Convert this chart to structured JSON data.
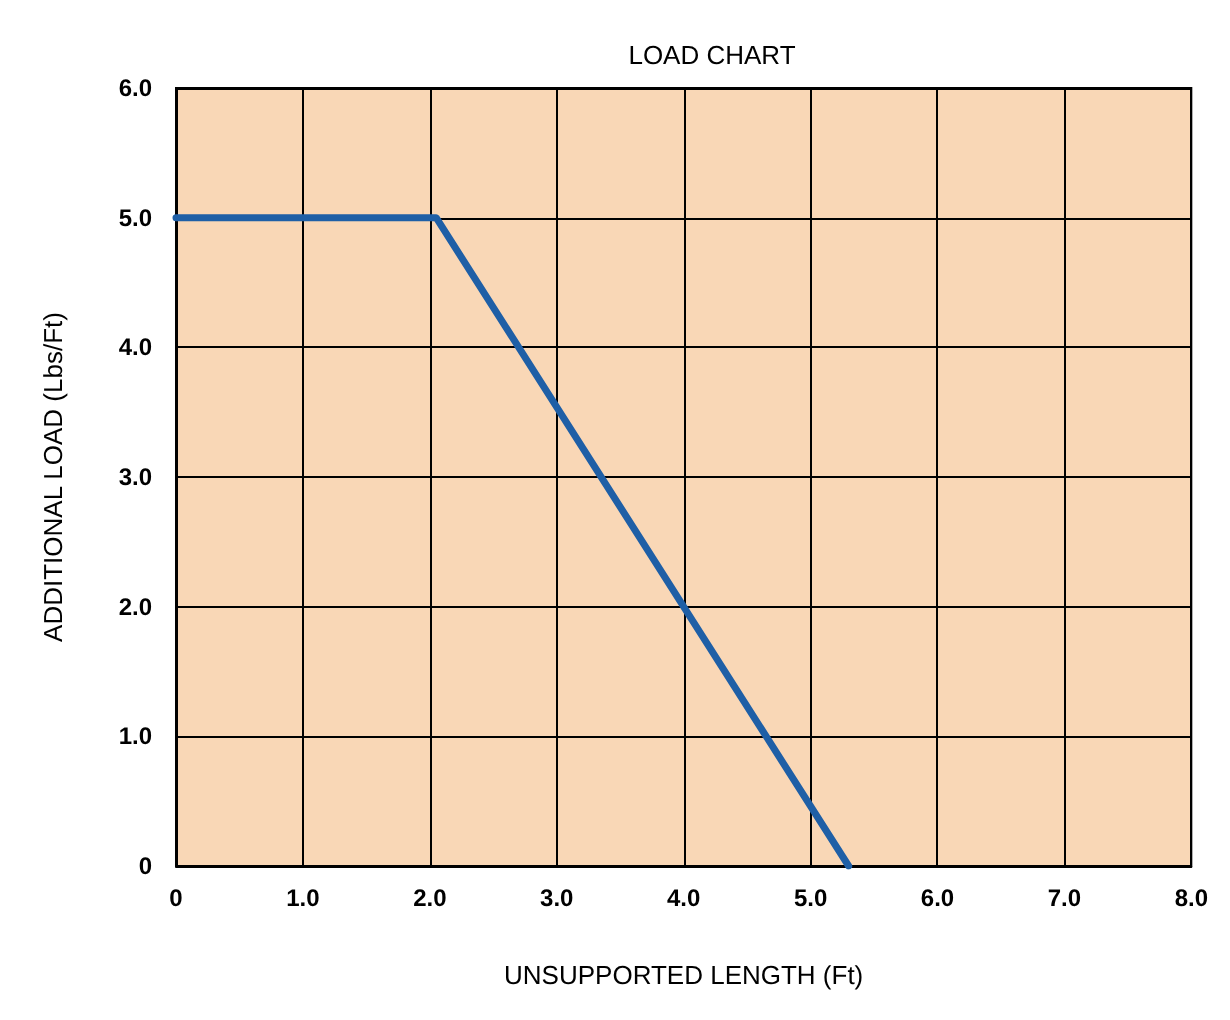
{
  "chart_data": {
    "type": "line",
    "title": "LOAD CHART",
    "xlabel": "UNSUPPORTED LENGTH (Ft)",
    "ylabel": "ADDITIONAL LOAD (Lbs/Ft)",
    "x": [
      0,
      2.05,
      5.3
    ],
    "series": [
      {
        "color": "#1f5fa6",
        "values": [
          5,
          5,
          0
        ]
      }
    ],
    "xlim": [
      0,
      8
    ],
    "xticks": [
      0,
      {
        "value": 1,
        "label": "1.0"
      },
      {
        "value": 2,
        "label": "2.0"
      },
      {
        "value": 3,
        "label": "3.0"
      },
      {
        "value": 4,
        "label": "4.0"
      },
      {
        "value": 5,
        "label": "5.0"
      },
      {
        "value": 6,
        "label": "6.0"
      },
      {
        "value": 7,
        "label": "7.0"
      },
      {
        "value": 8,
        "label": "8.0"
      }
    ],
    "ylim": [
      0,
      6
    ],
    "yticks": [
      0,
      {
        "value": 1,
        "label": "1.0"
      },
      {
        "value": 2,
        "label": "2.0"
      },
      {
        "value": 3,
        "label": "3.0"
      },
      {
        "value": 4,
        "label": "4.0"
      },
      {
        "value": 5,
        "label": "5.0"
      },
      {
        "value": 6,
        "label": "6.0"
      }
    ],
    "grid": true,
    "marker": "none",
    "line_style": "solid"
  }
}
